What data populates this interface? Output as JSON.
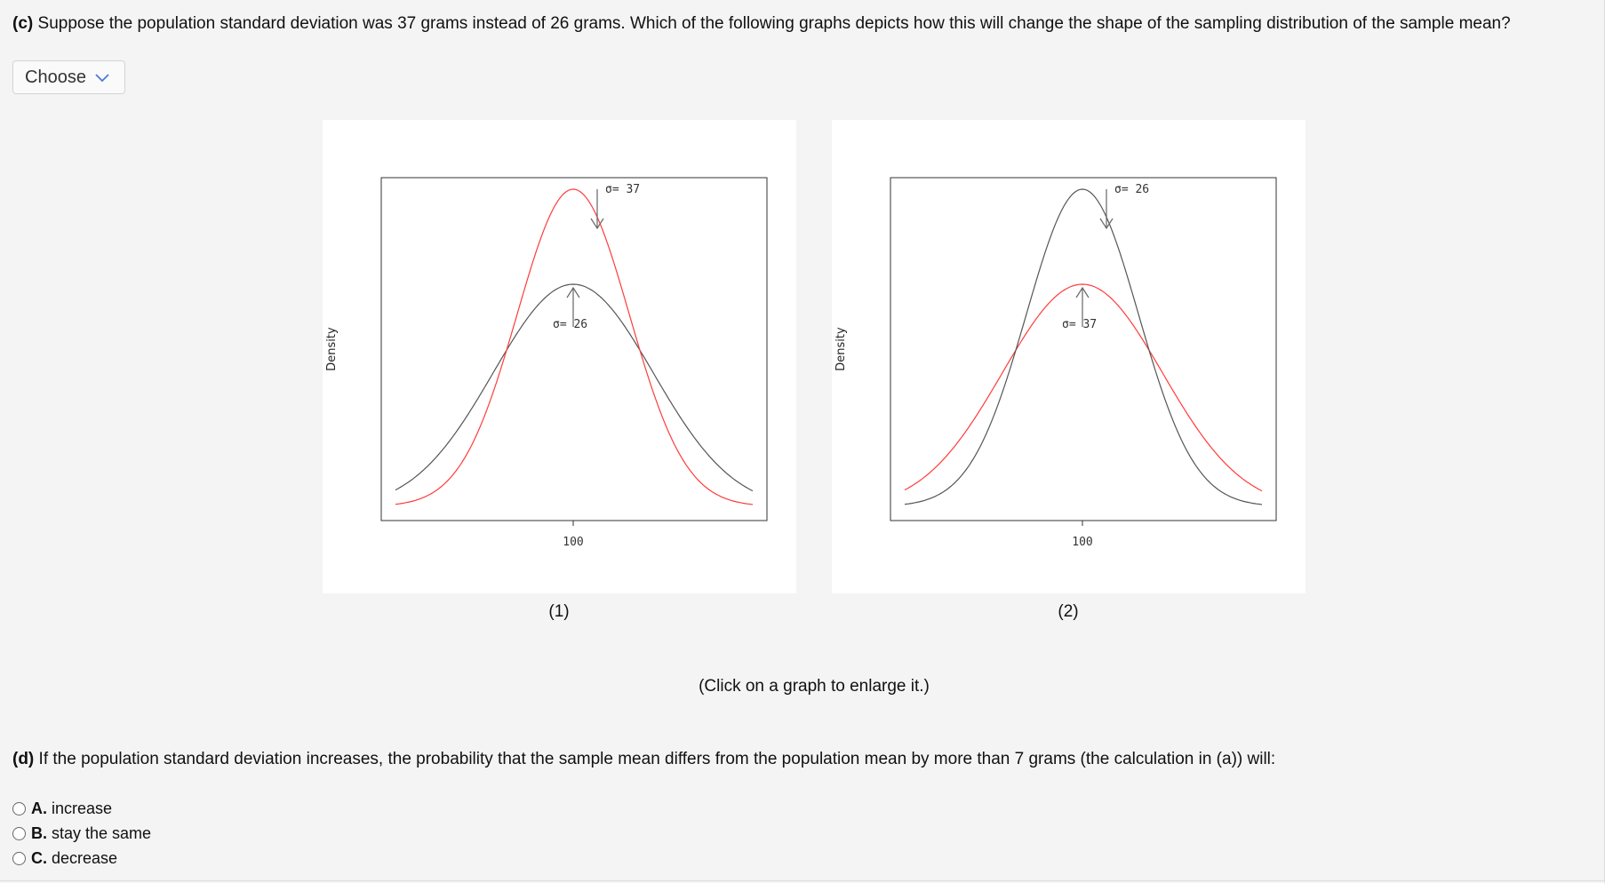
{
  "question_c": {
    "part": "(c)",
    "text": "Suppose the population standard deviation was 37 grams instead of 26 grams. Which of the following graphs depicts how this will change the shape of the sampling distribution of the sample mean?"
  },
  "dropdown": {
    "selected": "Choose"
  },
  "graphs": [
    {
      "caption": "(1)",
      "ylabel": "Density",
      "tick": "100",
      "top_label": "σ= 37",
      "low_label": "σ= 26",
      "top_color": "#ff3b3b",
      "low_color": "#555555"
    },
    {
      "caption": "(2)",
      "ylabel": "Density",
      "tick": "100",
      "top_label": "σ= 26",
      "low_label": "σ= 37",
      "top_color": "#555555",
      "low_color": "#ff3b3b"
    }
  ],
  "enlarge_note": "(Click on a graph to enlarge it.)",
  "question_d": {
    "part": "(d)",
    "text": "If the population standard deviation increases, the probability that the sample mean differs from the population mean by more than 7 grams (the calculation in (a)) will:"
  },
  "options": [
    {
      "letter": "A.",
      "text": "increase"
    },
    {
      "letter": "B.",
      "text": "stay the same"
    },
    {
      "letter": "C.",
      "text": "decrease"
    }
  ]
}
